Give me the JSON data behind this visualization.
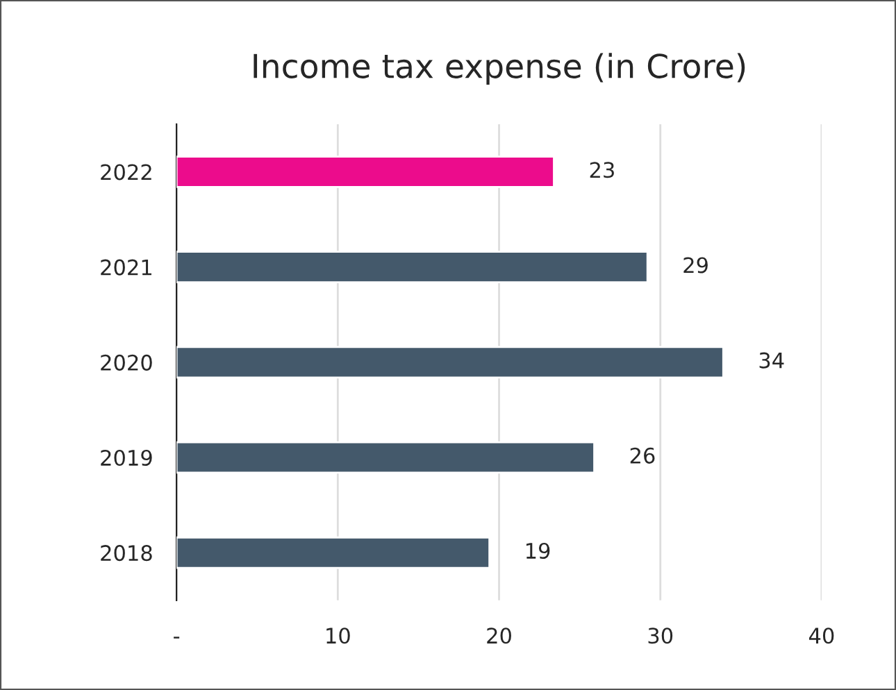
{
  "chart_data": {
    "type": "bar",
    "orientation": "horizontal",
    "title": "Income tax expense (in Crore)",
    "categories": [
      "2022",
      "2021",
      "2020",
      "2019",
      "2018"
    ],
    "values": [
      23.4,
      29.2,
      33.9,
      25.9,
      19.4
    ],
    "colors": [
      "#ec0c8c",
      "#44596b",
      "#44596b",
      "#44596b",
      "#44596b"
    ],
    "value_labels": [
      "23",
      "29",
      "34",
      "26",
      "19"
    ],
    "xlim": [
      0,
      40
    ],
    "xticks": [
      {
        "value": 0,
        "label": "-"
      },
      10,
      20,
      30,
      40
    ],
    "grid": "x",
    "legend": false
  }
}
